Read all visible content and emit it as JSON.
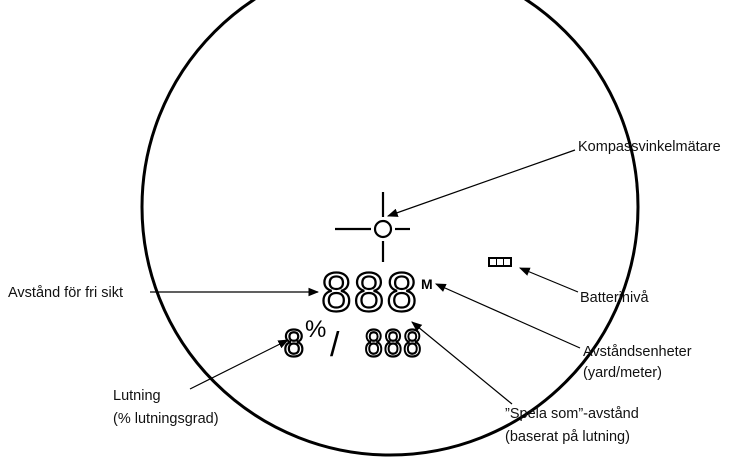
{
  "display": {
    "distance": "888",
    "unit": "M",
    "slope": "8",
    "percent": "%",
    "slash": "/",
    "play_as": "888"
  },
  "labels": {
    "compass": "Kompassvinkelmätare",
    "line_of_sight": "Avstånd för fri sikt",
    "battery": "Batterinivå",
    "units": [
      "Avståndsenheter",
      "(yard/meter)"
    ],
    "slope": [
      "Lutning",
      "(% lutningsgrad)"
    ],
    "play_as": [
      "”Spela som”-avstånd",
      "(baserat på lutning)"
    ]
  }
}
